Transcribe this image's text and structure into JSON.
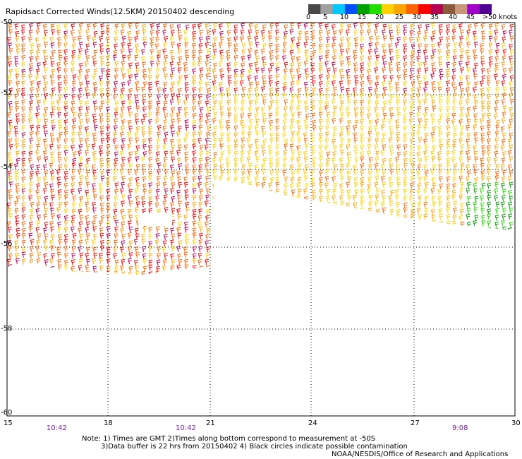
{
  "title": "Rapidsact Corrected Winds(12.5KM) 20150402 descending",
  "legend": {
    "labels": [
      "0",
      "5",
      "10",
      "15",
      "20",
      "25",
      "30",
      "35",
      "40",
      "45",
      ">50 knots"
    ],
    "colors": [
      "#484848",
      "#a0a0a0",
      "#00c8ff",
      "#0050ff",
      "#00a000",
      "#22dd00",
      "#ffd200",
      "#ffa500",
      "#ff6400",
      "#ff0000",
      "#b40050",
      "#8c5a3c",
      "#c89678",
      "#a000c8",
      "#500090"
    ]
  },
  "map": {
    "lat_labels": [
      "-50",
      "-52",
      "-54",
      "-56",
      "-58",
      "-60"
    ],
    "lon_labels": [
      "15",
      "18",
      "21",
      "24",
      "27",
      "30"
    ],
    "pass_times": [
      "10:42",
      "10:42",
      "9:08"
    ]
  },
  "notes": {
    "line1": "Note: 1) Times are GMT 2)Times along bottom correspond to measurement at -50S",
    "line2": "3)Data buffer is 22 hrs from 20150402 4) Black circles indicate possible contamination",
    "line3": "NOAA/NESDIS/Office of Research and Applications"
  }
}
